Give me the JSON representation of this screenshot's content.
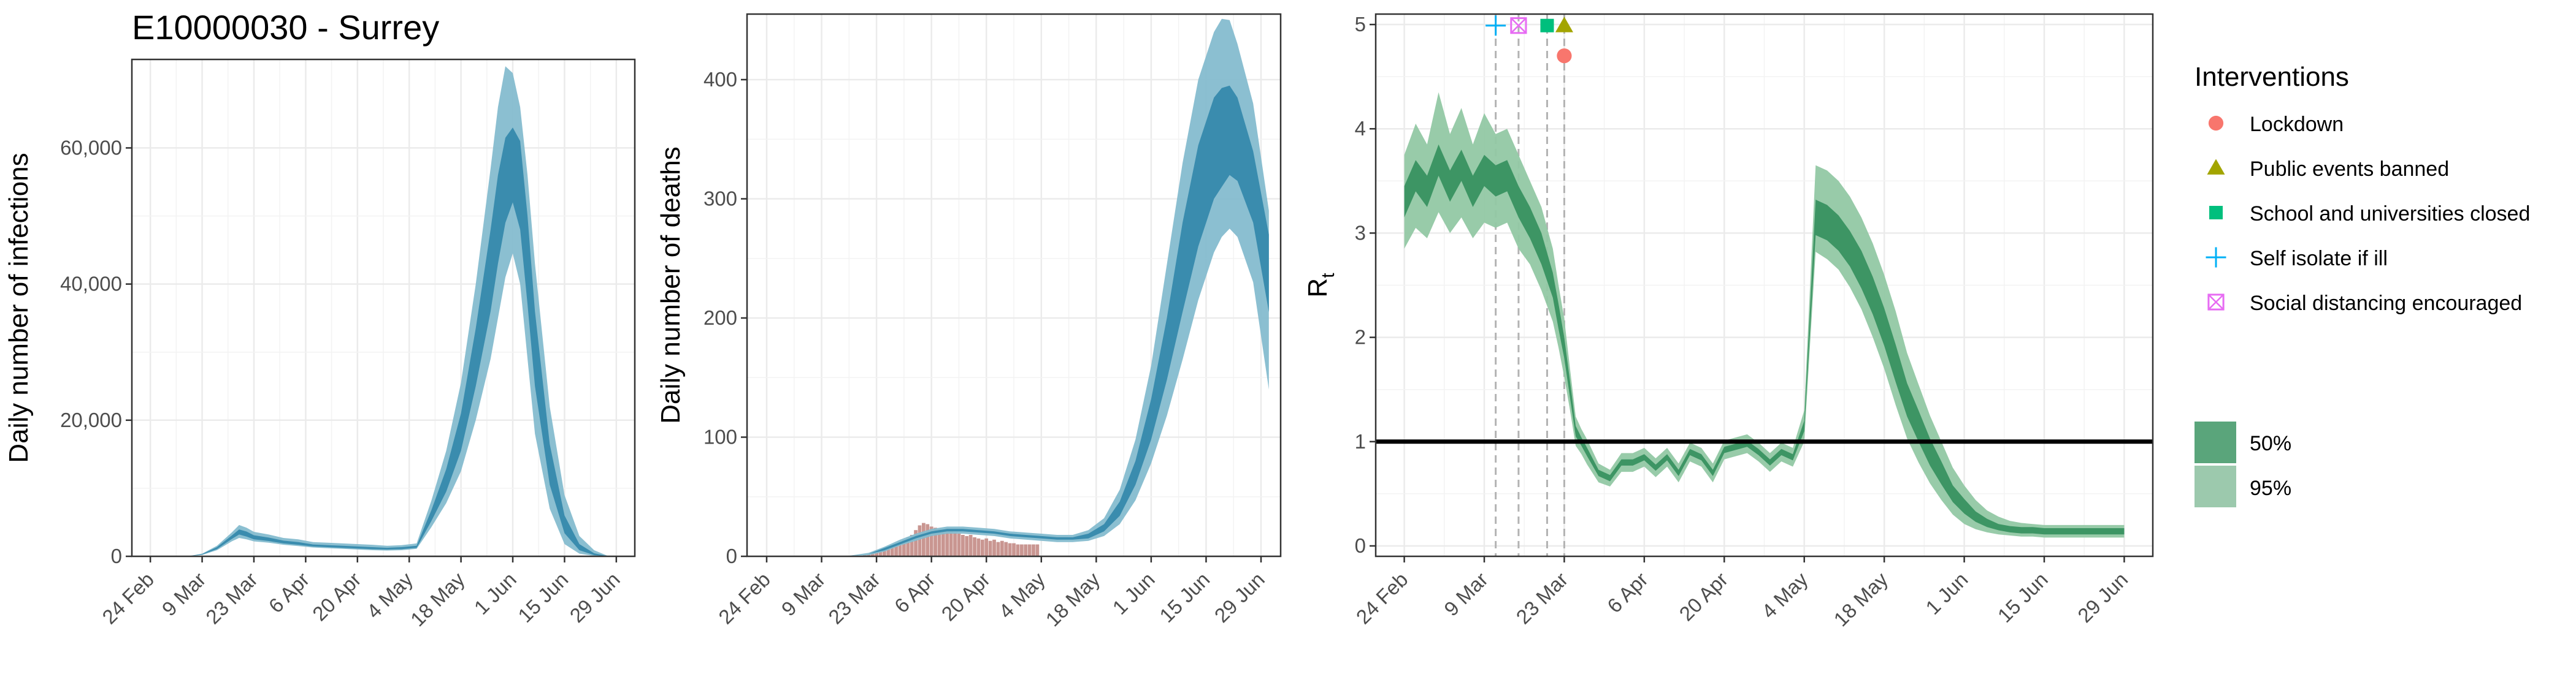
{
  "figure": {
    "title": "E10000030 - Surrey"
  },
  "legend": {
    "interventions_title": "Interventions",
    "interventions": [
      {
        "label": "Lockdown",
        "shape": "circle",
        "color": "#F8766D"
      },
      {
        "label": "Public events banned",
        "shape": "triangle",
        "color": "#A3A500"
      },
      {
        "label": "School and universities closed",
        "shape": "square",
        "color": "#00BF7D"
      },
      {
        "label": "Self isolate if ill",
        "shape": "plus",
        "color": "#00B0F6"
      },
      {
        "label": "Social distancing encouraged",
        "shape": "boxcross",
        "color": "#E76BF3"
      }
    ],
    "bands": [
      {
        "label": "50%",
        "color": "#5aa57b"
      },
      {
        "label": "95%",
        "color": "#9cc9ad"
      }
    ]
  },
  "colors": {
    "infections_50": "#3a8cae",
    "infections_95": "#85bccf",
    "deaths_bar": "#c99691",
    "rt_50": "#3d9564",
    "rt_95": "#92c8a4"
  },
  "chart_data": [
    {
      "type": "area",
      "id": "infections",
      "title": "E10000030 - Surrey",
      "xlabel": "",
      "ylabel": "Daily number of infections",
      "x_ticks": [
        "24 Feb",
        "9 Mar",
        "23 Mar",
        "6 Apr",
        "20 Apr",
        "4 May",
        "18 May",
        "1 Jun",
        "15 Jun",
        "29 Jun"
      ],
      "x_tick_days": [
        0,
        14,
        28,
        42,
        56,
        70,
        84,
        98,
        112,
        126
      ],
      "xlim_days": [
        -5,
        131
      ],
      "y_ticks": [
        0,
        20000,
        40000,
        60000
      ],
      "y_tick_labels": [
        "0",
        "20,000",
        "40,000",
        "60,000"
      ],
      "ylim": [
        0,
        73000
      ],
      "x_days": [
        0,
        10,
        14,
        18,
        22,
        24,
        26,
        28,
        32,
        36,
        40,
        44,
        48,
        52,
        56,
        60,
        64,
        68,
        72,
        76,
        80,
        84,
        88,
        92,
        94,
        96,
        98,
        100,
        102,
        104,
        108,
        112,
        116,
        120,
        124
      ],
      "median": [
        0,
        0,
        300,
        1200,
        2800,
        3600,
        3300,
        2800,
        2500,
        2100,
        1900,
        1600,
        1500,
        1400,
        1300,
        1200,
        1100,
        1200,
        1400,
        6000,
        11000,
        18000,
        29000,
        42000,
        50000,
        56000,
        59000,
        55000,
        43000,
        30000,
        13000,
        4500,
        1300,
        300,
        0
      ],
      "band50_lower": [
        0,
        0,
        260,
        1050,
        2550,
        3200,
        2900,
        2500,
        2250,
        1900,
        1700,
        1450,
        1350,
        1250,
        1150,
        1050,
        1000,
        1050,
        1250,
        5200,
        9500,
        15500,
        25000,
        36000,
        43000,
        49000,
        52000,
        48000,
        37000,
        25000,
        10500,
        3400,
        900,
        180,
        0
      ],
      "band50_upper": [
        0,
        0,
        340,
        1350,
        3050,
        3950,
        3650,
        3100,
        2750,
        2300,
        2100,
        1750,
        1650,
        1550,
        1450,
        1350,
        1250,
        1350,
        1550,
        6800,
        12800,
        21000,
        33500,
        48000,
        56000,
        61500,
        63000,
        61000,
        50000,
        36000,
        16500,
        6000,
        1800,
        450,
        0
      ],
      "band95_lower": [
        0,
        0,
        200,
        900,
        2200,
        2700,
        2500,
        2200,
        2000,
        1700,
        1500,
        1300,
        1200,
        1100,
        1000,
        900,
        850,
        900,
        1100,
        4300,
        7800,
        12500,
        20000,
        29000,
        35000,
        41000,
        44500,
        40000,
        29000,
        18000,
        7000,
        1800,
        400,
        60,
        0
      ],
      "band95_upper": [
        0,
        0,
        400,
        1550,
        3500,
        4600,
        4200,
        3600,
        3200,
        2700,
        2500,
        2100,
        2000,
        1900,
        1800,
        1700,
        1550,
        1650,
        1900,
        8200,
        15500,
        25500,
        40000,
        57000,
        66000,
        72000,
        71000,
        66000,
        56000,
        43000,
        22000,
        9000,
        3000,
        900,
        0
      ]
    },
    {
      "type": "area",
      "id": "deaths",
      "title": "",
      "xlabel": "",
      "ylabel": "Daily number of deaths",
      "x_ticks": [
        "24 Feb",
        "9 Mar",
        "23 Mar",
        "6 Apr",
        "20 Apr",
        "4 May",
        "18 May",
        "1 Jun",
        "15 Jun",
        "29 Jun"
      ],
      "x_tick_days": [
        0,
        14,
        28,
        42,
        56,
        70,
        84,
        98,
        112,
        126
      ],
      "xlim_days": [
        -5,
        131
      ],
      "y_ticks": [
        0,
        100,
        200,
        300,
        400
      ],
      "y_tick_labels": [
        "0",
        "100",
        "200",
        "300",
        "400"
      ],
      "ylim": [
        0,
        455
      ],
      "observed_bar_days": [
        25,
        26,
        27,
        28,
        29,
        30,
        31,
        32,
        33,
        34,
        35,
        36,
        37,
        38,
        39,
        40,
        41,
        42,
        43,
        44,
        45,
        46,
        47,
        48,
        49,
        50,
        51,
        52,
        53,
        54,
        55,
        56,
        57,
        58,
        59,
        60,
        61,
        62,
        63,
        64,
        65,
        66,
        67,
        68,
        69
      ],
      "observed_bar_values": [
        1,
        2,
        3,
        4,
        5,
        6,
        7,
        9,
        10,
        12,
        14,
        16,
        18,
        22,
        26,
        28,
        27,
        25,
        24,
        23,
        22,
        23,
        21,
        20,
        19,
        18,
        17,
        18,
        16,
        15,
        14,
        15,
        13,
        14,
        12,
        13,
        12,
        11,
        11,
        10,
        10,
        10,
        10,
        10,
        10
      ],
      "x_days": [
        0,
        20,
        26,
        30,
        34,
        38,
        42,
        46,
        50,
        54,
        58,
        62,
        66,
        70,
        74,
        78,
        82,
        86,
        90,
        94,
        98,
        102,
        106,
        110,
        114,
        116,
        118,
        120,
        124,
        128
      ],
      "median": [
        0,
        0,
        2,
        6,
        11,
        16,
        20,
        22,
        22,
        21,
        20,
        18,
        17,
        16,
        15,
        15,
        17,
        24,
        40,
        70,
        115,
        175,
        240,
        300,
        345,
        355,
        360,
        350,
        310,
        240
      ],
      "band50_lower": [
        0,
        0,
        2,
        5,
        10,
        15,
        19,
        21,
        21,
        20,
        19,
        17,
        16,
        15,
        14,
        14,
        15,
        21,
        34,
        60,
        98,
        148,
        205,
        260,
        300,
        310,
        320,
        315,
        280,
        205
      ],
      "band50_upper": [
        0,
        0,
        2,
        7,
        12,
        17,
        21,
        23,
        23,
        22,
        21,
        19,
        18,
        17,
        16,
        16,
        19,
        27,
        46,
        80,
        132,
        200,
        280,
        345,
        385,
        393,
        395,
        385,
        340,
        270
      ],
      "band95_lower": [
        0,
        0,
        1,
        4,
        9,
        13,
        17,
        19,
        19,
        18,
        17,
        15,
        14,
        13,
        12,
        12,
        13,
        17,
        27,
        47,
        78,
        118,
        165,
        215,
        255,
        268,
        275,
        268,
        230,
        140
      ],
      "band95_upper": [
        0,
        0,
        3,
        8,
        14,
        19,
        23,
        25,
        25,
        24,
        23,
        21,
        20,
        19,
        18,
        18,
        22,
        32,
        56,
        98,
        160,
        245,
        330,
        400,
        440,
        451,
        450,
        430,
        380,
        290
      ]
    },
    {
      "type": "area",
      "id": "rt",
      "title": "",
      "xlabel": "",
      "ylabel": "R",
      "ylabel_subscript": "t",
      "x_ticks": [
        "24 Feb",
        "9 Mar",
        "23 Mar",
        "6 Apr",
        "20 Apr",
        "4 May",
        "18 May",
        "1 Jun",
        "15 Jun",
        "29 Jun"
      ],
      "x_tick_days": [
        0,
        14,
        28,
        42,
        56,
        70,
        84,
        98,
        112,
        126
      ],
      "xlim_days": [
        -5,
        131
      ],
      "y_ticks": [
        0,
        1,
        2,
        3,
        4,
        5
      ],
      "y_tick_labels": [
        "0",
        "1",
        "2",
        "3",
        "4",
        "5"
      ],
      "ylim": [
        -0.1,
        5.1
      ],
      "reference_line_y": 1,
      "intervention_dates_days": [
        16,
        20,
        25,
        28
      ],
      "intervention_markers": [
        {
          "label": "Self isolate if ill",
          "day": 16,
          "y": 4.99
        },
        {
          "label": "Social distancing encouraged",
          "day": 20,
          "y": 4.99
        },
        {
          "label": "School and universities closed",
          "day": 25,
          "y": 4.99
        },
        {
          "label": "Public events banned",
          "day": 28,
          "y": 4.99
        },
        {
          "label": "Lockdown",
          "day": 28,
          "y": 4.7
        }
      ],
      "x_days": [
        0,
        2,
        4,
        6,
        8,
        10,
        12,
        14,
        16,
        18,
        20,
        22,
        24,
        26,
        27,
        28,
        29,
        30,
        31,
        32,
        34,
        36,
        38,
        40,
        42,
        44,
        46,
        48,
        50,
        52,
        54,
        56,
        58,
        60,
        62,
        64,
        66,
        68,
        69,
        70,
        72,
        74,
        76,
        78,
        80,
        82,
        84,
        86,
        88,
        90,
        92,
        94,
        96,
        98,
        100,
        102,
        104,
        106,
        108,
        110,
        112,
        114,
        116,
        118,
        120,
        122,
        124,
        126
      ],
      "median": [
        3.3,
        3.55,
        3.4,
        3.7,
        3.45,
        3.65,
        3.4,
        3.6,
        3.5,
        3.55,
        3.3,
        3.1,
        2.85,
        2.5,
        2.2,
        1.9,
        1.5,
        1.1,
        1.0,
        0.9,
        0.7,
        0.65,
        0.8,
        0.8,
        0.85,
        0.75,
        0.85,
        0.7,
        0.9,
        0.85,
        0.7,
        0.92,
        0.95,
        0.98,
        0.9,
        0.8,
        0.9,
        0.85,
        1.0,
        1.15,
        3.15,
        3.1,
        3.0,
        2.85,
        2.65,
        2.4,
        2.1,
        1.75,
        1.4,
        1.15,
        0.9,
        0.7,
        0.5,
        0.38,
        0.28,
        0.22,
        0.18,
        0.16,
        0.15,
        0.15,
        0.14,
        0.14,
        0.14,
        0.14,
        0.14,
        0.14,
        0.14,
        0.14
      ],
      "band50_lower": [
        3.15,
        3.4,
        3.25,
        3.55,
        3.3,
        3.5,
        3.25,
        3.45,
        3.35,
        3.4,
        3.15,
        2.95,
        2.7,
        2.38,
        2.08,
        1.8,
        1.42,
        1.05,
        0.96,
        0.86,
        0.67,
        0.62,
        0.77,
        0.77,
        0.82,
        0.72,
        0.82,
        0.67,
        0.87,
        0.82,
        0.67,
        0.89,
        0.92,
        0.95,
        0.87,
        0.77,
        0.87,
        0.82,
        0.96,
        1.1,
        2.98,
        2.93,
        2.83,
        2.68,
        2.47,
        2.22,
        1.92,
        1.57,
        1.24,
        1.0,
        0.77,
        0.59,
        0.42,
        0.31,
        0.23,
        0.18,
        0.15,
        0.13,
        0.12,
        0.12,
        0.11,
        0.11,
        0.11,
        0.11,
        0.11,
        0.11,
        0.11,
        0.11
      ],
      "band50_upper": [
        3.45,
        3.7,
        3.55,
        3.85,
        3.6,
        3.8,
        3.55,
        3.75,
        3.65,
        3.7,
        3.45,
        3.25,
        3.0,
        2.62,
        2.32,
        2.0,
        1.58,
        1.15,
        1.04,
        0.94,
        0.73,
        0.68,
        0.83,
        0.83,
        0.88,
        0.78,
        0.88,
        0.73,
        0.93,
        0.88,
        0.73,
        0.95,
        0.98,
        1.01,
        0.93,
        0.83,
        0.93,
        0.88,
        1.04,
        1.2,
        3.32,
        3.27,
        3.17,
        3.02,
        2.83,
        2.58,
        2.28,
        1.93,
        1.56,
        1.3,
        1.03,
        0.81,
        0.58,
        0.45,
        0.33,
        0.26,
        0.21,
        0.19,
        0.18,
        0.18,
        0.17,
        0.17,
        0.17,
        0.17,
        0.17,
        0.17,
        0.17,
        0.17
      ],
      "band95_lower": [
        2.85,
        3.05,
        2.95,
        3.2,
        3.0,
        3.15,
        2.95,
        3.1,
        3.05,
        3.1,
        2.85,
        2.7,
        2.45,
        2.15,
        1.9,
        1.62,
        1.3,
        0.96,
        0.88,
        0.78,
        0.61,
        0.57,
        0.71,
        0.71,
        0.76,
        0.66,
        0.76,
        0.61,
        0.81,
        0.76,
        0.61,
        0.83,
        0.86,
        0.89,
        0.81,
        0.71,
        0.81,
        0.76,
        0.88,
        1.0,
        2.82,
        2.75,
        2.65,
        2.48,
        2.27,
        2.0,
        1.7,
        1.35,
        1.03,
        0.8,
        0.6,
        0.44,
        0.3,
        0.21,
        0.16,
        0.13,
        0.11,
        0.1,
        0.09,
        0.09,
        0.08,
        0.08,
        0.08,
        0.08,
        0.08,
        0.08,
        0.08,
        0.08
      ],
      "band95_upper": [
        3.75,
        4.05,
        3.85,
        4.35,
        3.95,
        4.2,
        3.85,
        4.15,
        3.95,
        4.0,
        3.75,
        3.5,
        3.25,
        2.85,
        2.5,
        2.18,
        1.7,
        1.24,
        1.12,
        1.02,
        0.79,
        0.73,
        0.89,
        0.89,
        0.94,
        0.84,
        0.94,
        0.79,
        0.99,
        0.94,
        0.79,
        1.01,
        1.04,
        1.07,
        0.99,
        0.89,
        0.99,
        0.94,
        1.12,
        1.3,
        3.65,
        3.6,
        3.5,
        3.35,
        3.15,
        2.9,
        2.6,
        2.25,
        1.85,
        1.55,
        1.25,
        1.0,
        0.75,
        0.58,
        0.44,
        0.34,
        0.28,
        0.24,
        0.22,
        0.21,
        0.2,
        0.2,
        0.2,
        0.2,
        0.2,
        0.2,
        0.2,
        0.2
      ]
    }
  ]
}
